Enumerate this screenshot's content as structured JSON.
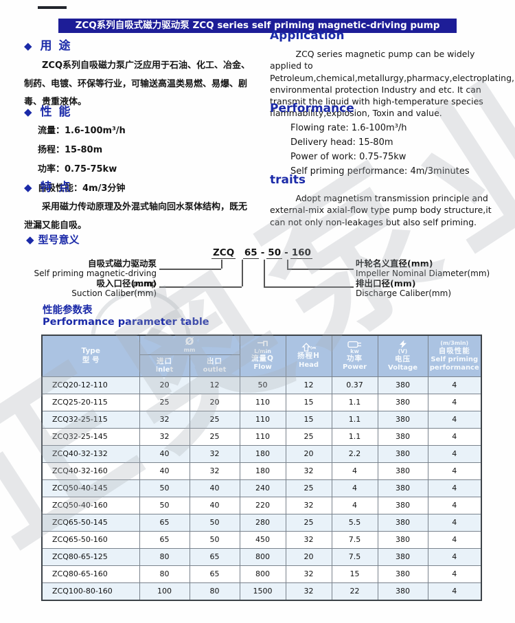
{
  "icons": {
    "diamond": "◆"
  },
  "watermark": {
    "text": "正奥泵业"
  },
  "colors": {
    "header_bar": "#1d1d97",
    "heading_blue": "#1b2aa8",
    "table_header_bg": "#abc3e2",
    "row_tint": "#e9f2f9"
  },
  "header": {
    "title": "ZCQ系列自吸式磁力驱动泵 ZCQ series self priming magnetic-driving pump"
  },
  "sections": {
    "use_cn": {
      "title": "用 途",
      "body": "ZCQ系列自吸磁力泵广泛应用于石油、化工、冶金、制药、电镀、环保等行业，可输送高温类易燃、易爆、剧毒、贵重液体。"
    },
    "application_en": {
      "title": "Application",
      "body": "ZCQ series magnetic pump can be widely applied to Petroleum,chemical,metallurgy,pharmacy,electroplating, environmental protection Industry and etc. It can transmit the liquid with high-temperature species flammability,explosion, Toxin and value."
    },
    "performance_cn": {
      "title": "性 能",
      "lines": [
        "流量：1.6-100m³/h",
        "扬程：15-80m",
        "功率：0.75-75kw",
        "自吸性能：4m/3分钟"
      ]
    },
    "performance_en": {
      "title": "Performance",
      "lines": [
        "Flowing rate: 1.6-100m³/h",
        "Delivery head: 15-80m",
        "Power of work: 0.75-75kw",
        "Self priming performance: 4m/3minutes"
      ]
    },
    "traits_cn": {
      "title": "特 点",
      "body": "采用磁力传动原理及外混式轴向回水泵体结构，既无泄漏又能自吸。"
    },
    "traits_en": {
      "title": "traits",
      "body": "Adopt magnetism transmission principle and external-mix axial-flow type pump body structure,it can not only non-leakages but also self priming."
    }
  },
  "model": {
    "title": "型号意义",
    "prefix": "ZCQ",
    "suction": "65",
    "discharge": "50",
    "impeller": "160",
    "separator": "-",
    "labels": {
      "pump_cn": "自吸式磁力驱动泵",
      "pump_en": "Self priming magnetic-driving pump",
      "suction_cn": "吸入口径(mm)",
      "suction_en": "Suction Caliber(mm)",
      "impeller_cn": "叶轮名义直径(mm)",
      "impeller_en": "Impeller Nominal Diameter(mm)",
      "discharge_cn": "排出口径(mm)",
      "discharge_en": "Discharge Caliber(mm)"
    }
  },
  "table": {
    "title_cn": "性能参数表",
    "title_en": "Performance parameter table",
    "header": {
      "type_en": "Type",
      "type_cn": "型 号",
      "diameter_symbol": "Ø",
      "diameter_unit": "mm",
      "inlet_cn": "进口",
      "inlet_en": "inlet",
      "outlet_cn": "出口",
      "outlet_en": "outlet",
      "flow_unit": "L/min",
      "flow_cn": "流量Q",
      "flow_en": "Flow",
      "head_unit": "(m)",
      "head_cn": "扬程H",
      "head_en": "Head",
      "power_unit": "kw",
      "power_cn": "功率",
      "power_en": "Power",
      "voltage_unit": "(V)",
      "voltage_cn": "电压",
      "voltage_en": "Voltage",
      "selfpriming_unit": "(m/3min)",
      "selfpriming_cn": "自吸性能",
      "selfpriming_en": "Self priming performance"
    },
    "rows": [
      [
        "ZCQ20-12-110",
        "20",
        "12",
        "50",
        "12",
        "0.37",
        "380",
        "4"
      ],
      [
        "ZCQ25-20-115",
        "25",
        "20",
        "110",
        "15",
        "1.1",
        "380",
        "4"
      ],
      [
        "ZCQ32-25-115",
        "32",
        "25",
        "110",
        "15",
        "1.1",
        "380",
        "4"
      ],
      [
        "ZCQ32-25-145",
        "32",
        "25",
        "110",
        "25",
        "1.1",
        "380",
        "4"
      ],
      [
        "ZCQ40-32-132",
        "40",
        "32",
        "180",
        "20",
        "2.2",
        "380",
        "4"
      ],
      [
        "ZCQ40-32-160",
        "40",
        "32",
        "180",
        "32",
        "4",
        "380",
        "4"
      ],
      [
        "ZCQ50-40-145",
        "50",
        "40",
        "240",
        "25",
        "4",
        "380",
        "4"
      ],
      [
        "ZCQ50-40-160",
        "50",
        "40",
        "220",
        "32",
        "4",
        "380",
        "4"
      ],
      [
        "ZCQ65-50-145",
        "65",
        "50",
        "280",
        "25",
        "5.5",
        "380",
        "4"
      ],
      [
        "ZCQ65-50-160",
        "65",
        "50",
        "450",
        "32",
        "7.5",
        "380",
        "4"
      ],
      [
        "ZCQ80-65-125",
        "80",
        "65",
        "800",
        "20",
        "7.5",
        "380",
        "4"
      ],
      [
        "ZCQ80-65-160",
        "80",
        "65",
        "800",
        "32",
        "15",
        "380",
        "4"
      ],
      [
        "ZCQ100-80-160",
        "100",
        "80",
        "1500",
        "32",
        "22",
        "380",
        "4"
      ]
    ]
  }
}
